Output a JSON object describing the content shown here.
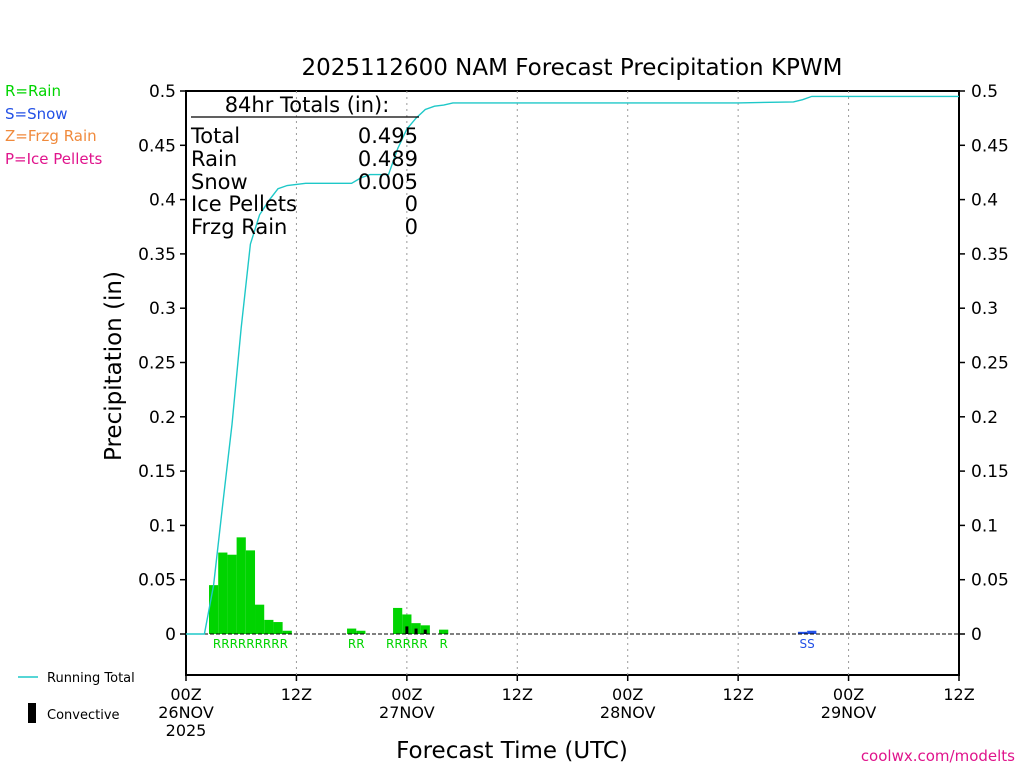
{
  "colors": {
    "rain": "#00d400",
    "snow": "#2250e6",
    "frzg_rain": "#f08a3c",
    "ice_pellets": "#e0148c",
    "running_total": "#1ec8c8",
    "convective": "#000000",
    "credit": "#e0148c"
  },
  "chart_data": {
    "type": "bar",
    "title": "2025112600 NAM Forecast Precipitation KPWM",
    "xlabel": "Forecast Time (UTC)",
    "ylabel": "Precipitation (in)",
    "ylim": [
      -0.04,
      0.5
    ],
    "yticks": [
      0,
      0.05,
      0.1,
      0.15,
      0.2,
      0.25,
      0.3,
      0.35,
      0.4,
      0.45,
      0.5
    ],
    "ytick_labels": [
      "0",
      "0.05",
      "0.1",
      "0.15",
      "0.2",
      "0.25",
      "0.3",
      "0.35",
      "0.4",
      "0.45",
      "0.5"
    ],
    "xlim_hours": [
      0,
      84
    ],
    "xticks": [
      {
        "hour": 0,
        "labels": [
          "00Z",
          "26NOV",
          "2025"
        ]
      },
      {
        "hour": 12,
        "labels": [
          "12Z"
        ]
      },
      {
        "hour": 24,
        "labels": [
          "00Z",
          "27NOV"
        ]
      },
      {
        "hour": 36,
        "labels": [
          "12Z"
        ]
      },
      {
        "hour": 48,
        "labels": [
          "00Z",
          "28NOV"
        ]
      },
      {
        "hour": 60,
        "labels": [
          "12Z"
        ]
      },
      {
        "hour": 72,
        "labels": [
          "00Z",
          "29NOV"
        ]
      },
      {
        "hour": 84,
        "labels": [
          "12Z"
        ]
      }
    ],
    "grid": "vertical dotted at 12Z/00Z",
    "hourly_precip": [
      {
        "hour": 3,
        "value": 0.045,
        "type": "R"
      },
      {
        "hour": 4,
        "value": 0.075,
        "type": "R"
      },
      {
        "hour": 5,
        "value": 0.073,
        "type": "R"
      },
      {
        "hour": 6,
        "value": 0.089,
        "type": "R"
      },
      {
        "hour": 7,
        "value": 0.077,
        "type": "R"
      },
      {
        "hour": 8,
        "value": 0.027,
        "type": "R"
      },
      {
        "hour": 9,
        "value": 0.013,
        "type": "R"
      },
      {
        "hour": 10,
        "value": 0.011,
        "type": "R"
      },
      {
        "hour": 11,
        "value": 0.003,
        "type": "R"
      },
      {
        "hour": 18,
        "value": 0.005,
        "type": "R"
      },
      {
        "hour": 19,
        "value": 0.003,
        "type": "R"
      },
      {
        "hour": 23,
        "value": 0.024,
        "type": "R"
      },
      {
        "hour": 24,
        "value": 0.018,
        "type": "R"
      },
      {
        "hour": 25,
        "value": 0.01,
        "type": "R"
      },
      {
        "hour": 26,
        "value": 0.008,
        "type": "R"
      },
      {
        "hour": 28,
        "value": 0.004,
        "type": "R"
      },
      {
        "hour": 67,
        "value": 0.002,
        "type": "S"
      },
      {
        "hour": 68,
        "value": 0.003,
        "type": "S"
      }
    ],
    "convective": [
      {
        "hour": 24,
        "value": 0.007
      },
      {
        "hour": 25,
        "value": 0.005
      },
      {
        "hour": 26,
        "value": 0.004
      }
    ],
    "running_total": {
      "hours": [
        0,
        2,
        3,
        4,
        5,
        6,
        7,
        8,
        9,
        10,
        11,
        12,
        13,
        18,
        19,
        20,
        21,
        22,
        23,
        24,
        25,
        26,
        27,
        28,
        29,
        30,
        40,
        60,
        66,
        67,
        68,
        84
      ],
      "values": [
        0,
        0,
        0.045,
        0.12,
        0.193,
        0.282,
        0.359,
        0.386,
        0.399,
        0.41,
        0.413,
        0.414,
        0.415,
        0.415,
        0.42,
        0.423,
        0.423,
        0.423,
        0.447,
        0.465,
        0.475,
        0.483,
        0.486,
        0.487,
        0.489,
        0.489,
        0.489,
        0.489,
        0.49,
        0.492,
        0.495,
        0.495
      ]
    },
    "precip_type_labels": [
      {
        "text": "RRRRRRRRR",
        "type": "R",
        "start_hour": 3,
        "end_hour": 11
      },
      {
        "text": "RR",
        "type": "R",
        "start_hour": 18,
        "end_hour": 19
      },
      {
        "text": "RRRRR",
        "type": "R",
        "start_hour": 22,
        "end_hour": 26
      },
      {
        "text": "R",
        "type": "R",
        "start_hour": 28,
        "end_hour": 28
      },
      {
        "text": "SS",
        "type": "S",
        "start_hour": 67,
        "end_hour": 68
      }
    ],
    "totals_box": {
      "title": "84hr Totals (in):",
      "rows": [
        {
          "label": "Total",
          "value": "0.495"
        },
        {
          "label": "Rain",
          "value": "0.489"
        },
        {
          "label": "Snow",
          "value": "0.005"
        },
        {
          "label": "Ice Pellets",
          "value": "0"
        },
        {
          "label": "Frzg Rain",
          "value": "0"
        }
      ]
    }
  },
  "legend": {
    "types": [
      {
        "text": "R=Rain",
        "color": "#00d400"
      },
      {
        "text": "S=Snow",
        "color": "#2250e6"
      },
      {
        "text": "Z=Frzg Rain",
        "color": "#f08a3c"
      },
      {
        "text": "P=Ice Pellets",
        "color": "#e0148c"
      }
    ],
    "running_total": "Running Total",
    "convective": "Convective"
  },
  "credit": "coolwx.com/modelts"
}
